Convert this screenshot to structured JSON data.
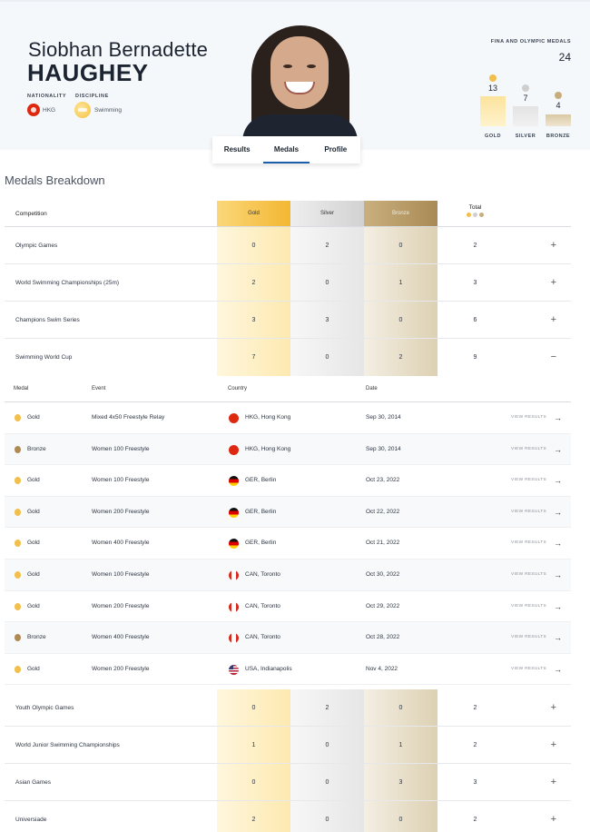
{
  "athlete": {
    "first_name": "Siobhan Bernadette",
    "last_name": "HAUGHEY",
    "nationality_label": "NATIONALITY",
    "nationality": "HKG",
    "discipline_label": "DISCIPLINE",
    "discipline": "Swimming"
  },
  "tabs": [
    {
      "label": "Results",
      "active": false
    },
    {
      "label": "Medals",
      "active": true
    },
    {
      "label": "Profile",
      "active": false
    }
  ],
  "medal_summary": {
    "label": "FINA AND OLYMPIC MEDALS",
    "total": "24",
    "gold": {
      "count": "13",
      "label": "GOLD"
    },
    "silver": {
      "count": "7",
      "label": "SILVER"
    },
    "bronze": {
      "count": "4",
      "label": "BRONZE"
    }
  },
  "breakdown": {
    "title": "Medals Breakdown",
    "headers": {
      "competition": "Competition",
      "gold": "Gold",
      "silver": "Silver",
      "bronze": "Bronze",
      "total": "Total"
    },
    "rows_top": [
      {
        "name": "Olympic Games",
        "gold": "0",
        "silver": "2",
        "bronze": "0",
        "total": "2",
        "toggle": "+"
      },
      {
        "name": "World Swimming Championships (25m)",
        "gold": "2",
        "silver": "0",
        "bronze": "1",
        "total": "3",
        "toggle": "+"
      },
      {
        "name": "Champions Swim Series",
        "gold": "3",
        "silver": "3",
        "bronze": "0",
        "total": "6",
        "toggle": "+"
      },
      {
        "name": "Swimming World Cup",
        "gold": "7",
        "silver": "0",
        "bronze": "2",
        "total": "9",
        "toggle": "−"
      }
    ],
    "detail_headers": {
      "medal": "Medal",
      "event": "Event",
      "country": "Country",
      "date": "Date"
    },
    "detail_rows": [
      {
        "medal": "Gold",
        "event": "Mixed 4x50 Freestyle Relay",
        "country": "HKG, Hong Kong",
        "date": "Sep 30, 2014",
        "link": "VIEW RESULTS"
      },
      {
        "medal": "Bronze",
        "event": "Women 100 Freestyle",
        "country": "HKG, Hong Kong",
        "date": "Sep 30, 2014",
        "link": "VIEW RESULTS"
      },
      {
        "medal": "Gold",
        "event": "Women 100 Freestyle",
        "country": "GER, Berlin",
        "date": "Oct 23, 2022",
        "link": "VIEW RESULTS"
      },
      {
        "medal": "Gold",
        "event": "Women 200 Freestyle",
        "country": "GER, Berlin",
        "date": "Oct 22, 2022",
        "link": "VIEW RESULTS"
      },
      {
        "medal": "Gold",
        "event": "Women 400 Freestyle",
        "country": "GER, Berlin",
        "date": "Oct 21, 2022",
        "link": "VIEW RESULTS"
      },
      {
        "medal": "Gold",
        "event": "Women 100 Freestyle",
        "country": "CAN, Toronto",
        "date": "Oct 30, 2022",
        "link": "VIEW RESULTS"
      },
      {
        "medal": "Gold",
        "event": "Women 200 Freestyle",
        "country": "CAN, Toronto",
        "date": "Oct 29, 2022",
        "link": "VIEW RESULTS"
      },
      {
        "medal": "Bronze",
        "event": "Women 400 Freestyle",
        "country": "CAN, Toronto",
        "date": "Oct 28, 2022",
        "link": "VIEW RESULTS"
      },
      {
        "medal": "Gold",
        "event": "Women 200 Freestyle",
        "country": "USA, Indianapolis",
        "date": "Nov 4, 2022",
        "link": "VIEW RESULTS"
      }
    ],
    "rows_bottom": [
      {
        "name": "Youth Olympic Games",
        "gold": "0",
        "silver": "2",
        "bronze": "0",
        "total": "2",
        "toggle": "+"
      },
      {
        "name": "World Junior Swimming Championships",
        "gold": "1",
        "silver": "0",
        "bronze": "1",
        "total": "2",
        "toggle": "+"
      },
      {
        "name": "Asian Games",
        "gold": "0",
        "silver": "0",
        "bronze": "3",
        "total": "3",
        "toggle": "+"
      },
      {
        "name": "Universiade",
        "gold": "2",
        "silver": "0",
        "bronze": "0",
        "total": "2",
        "toggle": "+"
      }
    ]
  },
  "colors": {
    "gold": "#f7c34a",
    "silver": "#d6d6d6",
    "bronze": "#c9b48a",
    "accent": "#1e5ea8"
  }
}
